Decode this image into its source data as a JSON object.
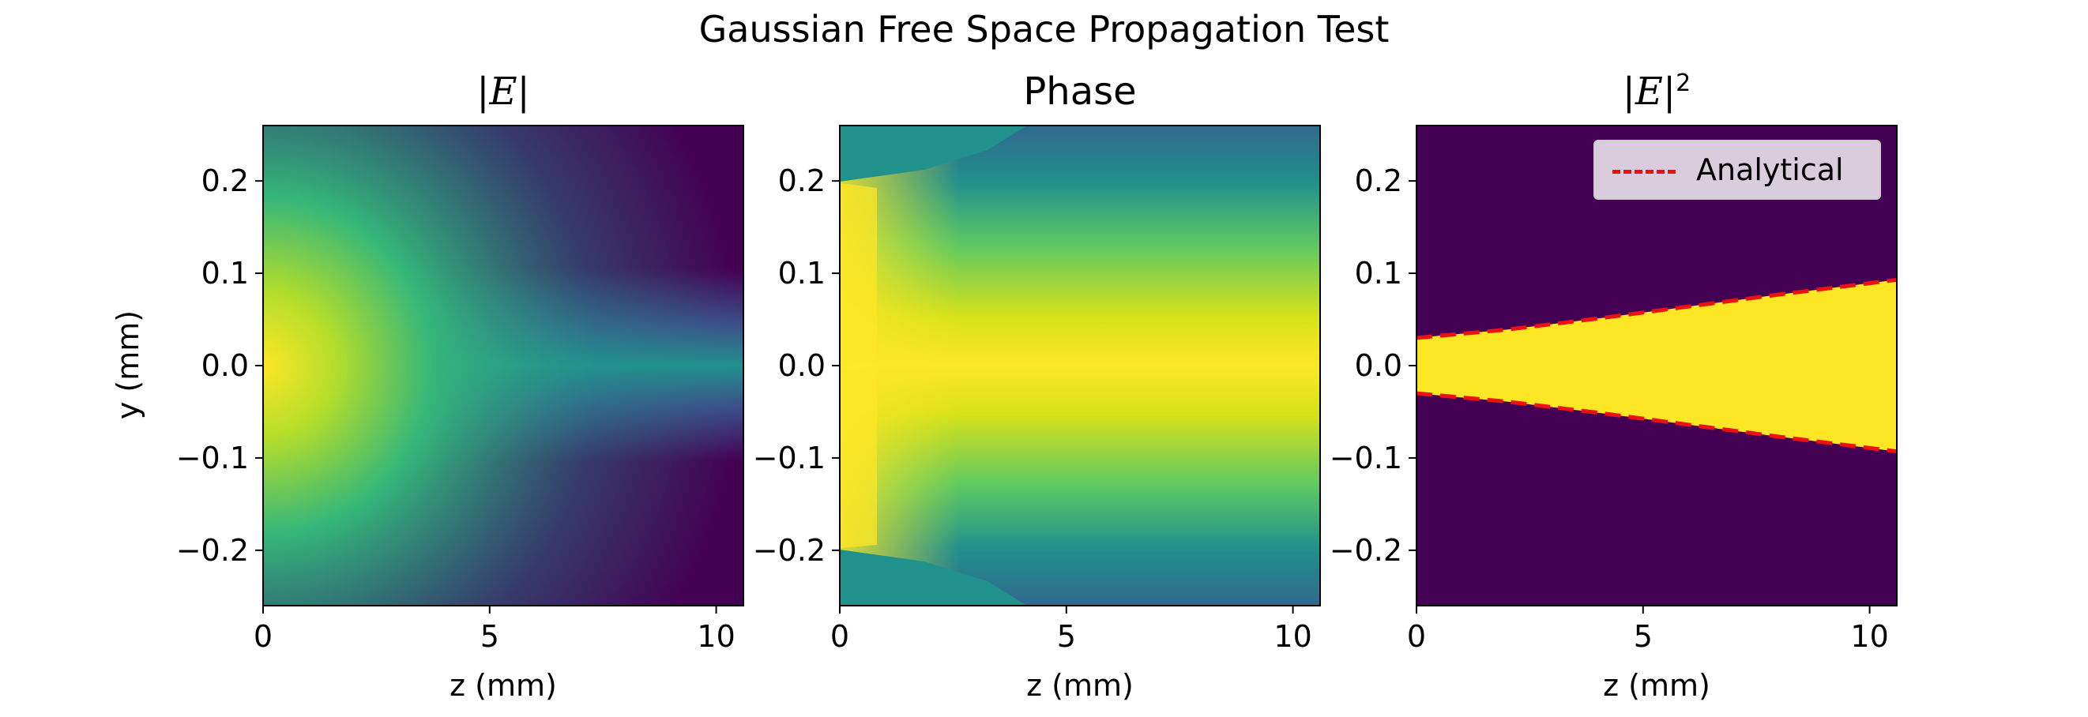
{
  "figure": {
    "suptitle": "Gaussian Free Space Propagation Test"
  },
  "chart_data": [
    {
      "type": "heatmap",
      "title": "|E|",
      "xlabel": "z (mm)",
      "ylabel": "y (mm)",
      "xlim": [
        0,
        10.6
      ],
      "ylim": [
        -0.26,
        0.26
      ],
      "xticks": [
        0,
        5,
        10
      ],
      "yticks": [
        -0.2,
        -0.1,
        0.0,
        0.1,
        0.2
      ],
      "colormap": "viridis",
      "field": "gaussian beam amplitude, peak at z=0, y=0",
      "beam_waist_mm": 0.03,
      "beam_radius_at_zmax_mm": 0.093
    },
    {
      "type": "heatmap",
      "title": "Phase",
      "xlabel": "z (mm)",
      "ylabel": "",
      "xlim": [
        0,
        10.6
      ],
      "ylim": [
        -0.26,
        0.26
      ],
      "xticks": [
        0,
        5,
        10
      ],
      "yticks": [
        -0.2,
        -0.1,
        0.0,
        0.1,
        0.2
      ],
      "colormap": "viridis",
      "field": "phase of gaussian beam, wrapped"
    },
    {
      "type": "heatmap",
      "title": "|E|²",
      "xlabel": "z (mm)",
      "ylabel": "",
      "xlim": [
        0,
        10.6
      ],
      "ylim": [
        -0.26,
        0.26
      ],
      "xticks": [
        0,
        5,
        10
      ],
      "yticks": [
        -0.2,
        -0.1,
        0.0,
        0.1,
        0.2
      ],
      "colormap": "viridis",
      "legend": {
        "placement": "upper right",
        "entries": [
          "Analytical"
        ]
      },
      "series": [
        {
          "name": "Analytical",
          "style": "dashed",
          "color": "#ee1111",
          "x": [
            0,
            2,
            4,
            6,
            8,
            10.6
          ],
          "upper": [
            0.03,
            0.039,
            0.051,
            0.064,
            0.077,
            0.093
          ],
          "lower": [
            -0.03,
            -0.039,
            -0.051,
            -0.064,
            -0.077,
            -0.093
          ]
        }
      ]
    }
  ],
  "colors": {
    "viridis_dark": "#440154",
    "viridis_teal": "#21918c",
    "viridis_green": "#5ec962",
    "viridis_yellow": "#fde725",
    "analytical_line": "#ee1111"
  }
}
